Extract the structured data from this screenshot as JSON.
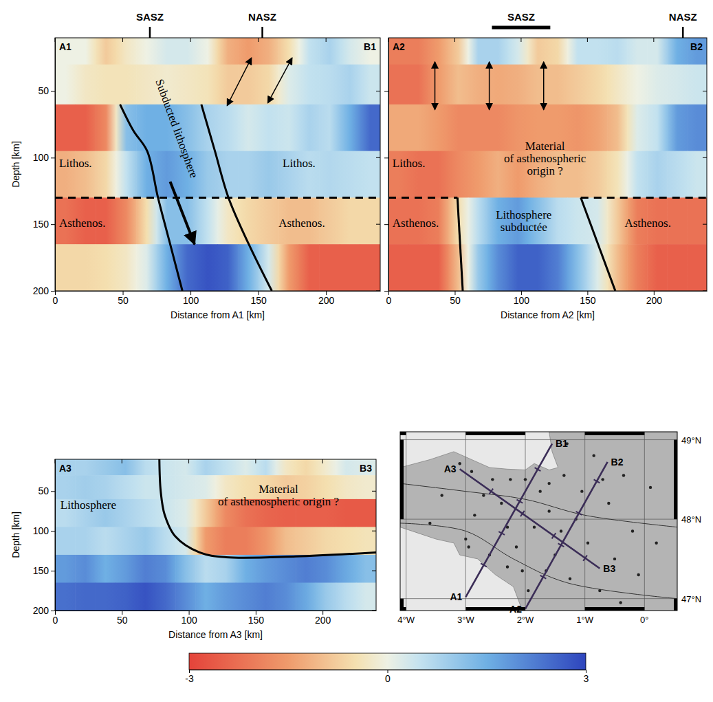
{
  "chart_data": [
    {
      "type": "heatmap",
      "start_label": "A1",
      "end_label": "B1",
      "x_label": "Distance from A1 [km]",
      "y_label": "Depth [km]",
      "xlim": [
        0,
        240
      ],
      "ylim": [
        10,
        200
      ],
      "xticks": [
        0,
        50,
        100,
        150,
        200
      ],
      "yticks": [
        50,
        100,
        150,
        200
      ],
      "distance_edges": [
        0,
        15,
        30,
        45,
        60,
        75,
        90,
        105,
        120,
        135,
        150,
        165,
        180,
        195,
        210,
        225,
        240
      ],
      "depth_edges": [
        10,
        30,
        60,
        95,
        130,
        165,
        200
      ],
      "cells": [
        [
          0,
          0,
          -0.8,
          -0.3,
          0,
          0.3,
          0.3,
          0,
          -1.2,
          -1.5,
          -1.2,
          -0.5,
          0.5,
          0.8,
          0.3,
          0
        ],
        [
          0,
          -0.3,
          -0.4,
          -0.4,
          -0.3,
          -0.2,
          -0.3,
          -0.4,
          -0.8,
          -0.8,
          -0.6,
          0.2,
          0.5,
          0.6,
          0.8,
          0.4
        ],
        [
          -2.5,
          -2.5,
          -1.8,
          1.2,
          1.5,
          1.5,
          1.2,
          0.8,
          0.6,
          0.3,
          0.5,
          0.4,
          0.8,
          0.6,
          1.5,
          2.5
        ],
        [
          -1.2,
          -1,
          -0.6,
          0.5,
          1.5,
          1.8,
          1.5,
          1,
          0.8,
          0.8,
          1,
          0.8,
          0.6,
          0.7,
          0.6,
          0.5
        ],
        [
          -2.2,
          -2.5,
          -2.5,
          -1.8,
          -0.5,
          1.2,
          1.2,
          0.5,
          -0.3,
          -0.6,
          -0.8,
          -1,
          -1,
          -0.8,
          -0.6,
          -0.6
        ],
        [
          -0.6,
          -0.6,
          -0.5,
          -0.3,
          0.2,
          1.5,
          2.5,
          2.8,
          2.6,
          1.5,
          0.3,
          -1.5,
          -2.5,
          -2.5,
          -2.5,
          -2.5
        ]
      ],
      "zones": [
        {
          "label": "SASZ",
          "distance": 70
        },
        {
          "label": "NASZ",
          "distance": 153
        }
      ],
      "boundaries": [
        {
          "points": [
            [
              48,
              60
            ],
            [
              58,
              80
            ],
            [
              68,
              95
            ],
            [
              76,
              130
            ],
            [
              85,
              165
            ],
            [
              94,
              200
            ]
          ],
          "line_style": "solid"
        },
        {
          "points": [
            [
              108,
              60
            ],
            [
              118,
              95
            ],
            [
              128,
              130
            ],
            [
              143,
              165
            ],
            [
              160,
              200
            ]
          ],
          "line_style": "solid"
        },
        {
          "points": [
            [
              0,
              130
            ],
            [
              240,
              130
            ]
          ],
          "line_style": "dashed"
        }
      ],
      "arrows": [
        {
          "points": [
            [
              85,
              118
            ],
            [
              103,
              165
            ]
          ],
          "marker": "single"
        },
        {
          "points": [
            [
              127,
              61
            ],
            [
              145,
              25
            ]
          ],
          "marker": "double"
        },
        {
          "points": [
            [
              157,
              59
            ],
            [
              175,
              25
            ]
          ],
          "marker": "double"
        }
      ],
      "annotations": [
        {
          "lines": [
            "Lithos."
          ]
        },
        {
          "lines": [
            "Lithos."
          ]
        },
        {
          "lines": [
            "Asthenos."
          ]
        },
        {
          "lines": [
            "Asthenos."
          ]
        },
        {
          "lines": [
            "Subducted lithosphere"
          ]
        }
      ]
    },
    {
      "type": "heatmap",
      "start_label": "A2",
      "end_label": "B2",
      "x_label": "Distance from A2 [km]",
      "xlim": [
        0,
        240
      ],
      "ylim": [
        10,
        200
      ],
      "xticks": [
        0,
        50,
        100,
        150,
        200
      ],
      "yticks": [
        50,
        100,
        150,
        200
      ],
      "tick_labels": "x",
      "distance_edges": [
        0,
        15,
        30,
        45,
        60,
        75,
        90,
        105,
        120,
        135,
        150,
        165,
        180,
        195,
        210,
        225,
        240
      ],
      "depth_edges": [
        10,
        30,
        60,
        95,
        130,
        165,
        200
      ],
      "cells": [
        [
          -2,
          -2,
          -1.5,
          -0.8,
          0.8,
          0.8,
          0.3,
          -0.8,
          -0.6,
          0.5,
          0.5,
          0.6,
          0.3,
          0.3,
          1.5,
          1.8
        ],
        [
          -2.2,
          -2.2,
          -1.5,
          -1,
          -1.2,
          -1.3,
          -1.2,
          -1,
          -1,
          -0.8,
          -0.6,
          -0.3,
          0,
          0.2,
          0.3,
          0.4
        ],
        [
          -1.3,
          -1.3,
          -1.5,
          -1.8,
          -1.8,
          -1.8,
          -1.6,
          -1.5,
          -1.5,
          -1.6,
          -1.4,
          -1,
          0.2,
          0.5,
          1.8,
          2
        ],
        [
          -2,
          -2.2,
          -2.2,
          -1.8,
          -1.5,
          -1.2,
          -1.5,
          -1.2,
          -1,
          -1,
          -0.8,
          -0.4,
          0.5,
          0.8,
          0.6,
          0.4
        ],
        [
          -2.2,
          -2.2,
          -2,
          -0.5,
          0.6,
          1.5,
          1.8,
          1.2,
          0.6,
          0.4,
          0.3,
          -0.8,
          -2,
          -2.2,
          -2.2,
          -2.2
        ],
        [
          -2.5,
          -2.5,
          -2.5,
          -1,
          1,
          2,
          2.6,
          2.6,
          2.2,
          1.2,
          0.2,
          -1,
          -2,
          -2.5,
          -2.5,
          -2.5
        ]
      ],
      "zones": [
        {
          "label": "SASZ",
          "from": 78,
          "to": 122
        },
        {
          "label": "NASZ",
          "distance": 222
        }
      ],
      "boundaries": [
        {
          "points": [
            [
              52,
              130
            ],
            [
              56,
              200
            ]
          ],
          "line_style": "solid"
        },
        {
          "points": [
            [
              145,
              130
            ],
            [
              171,
              200
            ]
          ],
          "line_style": "solid"
        },
        {
          "points": [
            [
              0,
              130
            ],
            [
              52,
              130
            ]
          ],
          "line_style": "dashed"
        },
        {
          "points": [
            [
              145,
              130
            ],
            [
              240,
              130
            ]
          ],
          "line_style": "dashed"
        }
      ],
      "arrows": [
        {
          "points": [
            [
              35,
              28
            ],
            [
              35,
              64
            ]
          ],
          "marker": "double"
        },
        {
          "points": [
            [
              76,
              28
            ],
            [
              76,
              64
            ]
          ],
          "marker": "double"
        },
        {
          "points": [
            [
              117,
              28
            ],
            [
              117,
              64
            ]
          ],
          "marker": "double"
        }
      ],
      "annotations": [
        {
          "lines": [
            "Lithos."
          ]
        },
        {
          "lines": [
            "Material",
            "of asthenospheric",
            "origin ?"
          ]
        },
        {
          "lines": [
            "Asthenos."
          ]
        },
        {
          "lines": [
            "Lithosphere",
            "subductée"
          ]
        },
        {
          "lines": [
            "Asthenos."
          ]
        }
      ]
    },
    {
      "type": "heatmap",
      "start_label": "A3",
      "end_label": "B3",
      "x_label": "Distance from A3 [km]",
      "y_label": "Depth [km]",
      "xlim": [
        0,
        240
      ],
      "ylim": [
        10,
        200
      ],
      "xticks": [
        0,
        50,
        100,
        150,
        200
      ],
      "yticks": [
        50,
        100,
        150,
        200
      ],
      "distance_edges": [
        0,
        15,
        30,
        45,
        60,
        75,
        90,
        105,
        120,
        135,
        150,
        165,
        180,
        195,
        210,
        225,
        240
      ],
      "depth_edges": [
        10,
        30,
        60,
        95,
        130,
        165,
        200
      ],
      "cells": [
        [
          0.8,
          0.8,
          1,
          1.2,
          0.6,
          0.4,
          0.3,
          0.8,
          0.5,
          0.2,
          0.6,
          -0.3,
          -0.6,
          -0.2,
          0.3,
          0.2
        ],
        [
          0.8,
          0.9,
          0.8,
          0.6,
          0.4,
          0.4,
          0.3,
          0.2,
          -0.3,
          -0.5,
          -0.6,
          -0.8,
          -0.7,
          -0.5,
          -0.3,
          -0.2
        ],
        [
          0.6,
          0.8,
          1,
          0.8,
          0.6,
          0.4,
          0.2,
          -0.8,
          -1.8,
          -2.2,
          -2.4,
          -2.5,
          -2.5,
          -2.5,
          -2.6,
          -2.6
        ],
        [
          0.8,
          0.8,
          0.6,
          0.8,
          1,
          0.6,
          0.3,
          -1.5,
          -2,
          -2,
          -1.6,
          -1,
          -0.8,
          -0.6,
          -0.5,
          -0.4
        ],
        [
          1.8,
          2,
          1.5,
          1.8,
          2.2,
          2,
          1.2,
          0.6,
          0.8,
          1.5,
          1.8,
          2,
          2.2,
          2,
          1.6,
          1.2
        ],
        [
          2.4,
          2.5,
          2.5,
          2.6,
          2.8,
          2.5,
          2,
          1.5,
          1.8,
          2,
          2.2,
          2,
          1.6,
          1,
          0.6,
          0.3
        ]
      ],
      "boundaries": [
        {
          "points": [
            [
              78,
              10
            ],
            [
              79,
              50
            ],
            [
              82,
              80
            ],
            [
              90,
              107
            ],
            [
              108,
              127
            ],
            [
              128,
              133
            ],
            [
              180,
              132
            ],
            [
              240,
              127
            ]
          ],
          "line_style": "solid"
        }
      ],
      "arrows": [],
      "annotations": [
        {
          "lines": [
            "Lithosphere"
          ]
        },
        {
          "lines": [
            "Material",
            "of asthenospheric origin ?"
          ]
        }
      ]
    },
    {
      "type": "map",
      "xlim": [
        -4.1,
        0.55
      ],
      "ylim": [
        46.85,
        49.1
      ],
      "xticks": [
        {
          "value": -4,
          "label": "4°W"
        },
        {
          "value": -3,
          "label": "3°W"
        },
        {
          "value": -2,
          "label": "2°W"
        },
        {
          "value": -1,
          "label": "1°W"
        },
        {
          "value": 0,
          "label": "0°"
        }
      ],
      "yticks": [
        {
          "value": 47,
          "label": "47°N"
        },
        {
          "value": 48,
          "label": "48°N"
        },
        {
          "value": 49,
          "label": "49°N"
        }
      ],
      "land": [
        [
          -4.1,
          48.65
        ],
        [
          -3.6,
          48.75
        ],
        [
          -3.2,
          48.85
        ],
        [
          -2.9,
          48.75
        ],
        [
          -2.6,
          48.65
        ],
        [
          -2.3,
          48.63
        ],
        [
          -2.0,
          48.62
        ],
        [
          -1.85,
          48.7
        ],
        [
          -1.6,
          48.62
        ],
        [
          -1.45,
          48.65
        ],
        [
          -1.55,
          48.85
        ],
        [
          -1.6,
          49.1
        ],
        [
          0.55,
          49.1
        ],
        [
          0.55,
          46.85
        ],
        [
          -2.05,
          46.85
        ],
        [
          -2.2,
          47.15
        ],
        [
          -2.5,
          47.3
        ],
        [
          -2.8,
          47.5
        ],
        [
          -3.1,
          47.55
        ],
        [
          -3.2,
          47.7
        ],
        [
          -3.5,
          47.75
        ],
        [
          -3.9,
          47.85
        ],
        [
          -4.1,
          47.9
        ]
      ],
      "faults": [
        [
          [
            -4.1,
            48.45
          ],
          [
            -3.0,
            48.35
          ],
          [
            -2.0,
            48.25
          ],
          [
            -1.0,
            48.05
          ],
          [
            0.55,
            47.9
          ]
        ],
        [
          [
            -4.1,
            47.95
          ],
          [
            -3.0,
            47.85
          ],
          [
            -2.2,
            47.5
          ],
          [
            -1.3,
            47.2
          ],
          [
            0.55,
            47.0
          ]
        ]
      ],
      "stations": [
        [
          -2.95,
          47.65
        ],
        [
          -3.0,
          47.75
        ],
        [
          -2.85,
          48.05
        ],
        [
          -2.7,
          48.3
        ],
        [
          -2.55,
          48.5
        ],
        [
          -2.4,
          48.2
        ],
        [
          -2.3,
          47.9
        ],
        [
          -2.15,
          47.65
        ],
        [
          -2.05,
          47.35
        ],
        [
          -1.95,
          47.1
        ],
        [
          -1.85,
          47.9
        ],
        [
          -1.75,
          48.35
        ],
        [
          -1.6,
          48.45
        ],
        [
          -1.6,
          48.1
        ],
        [
          -1.5,
          47.55
        ],
        [
          -1.4,
          47.85
        ],
        [
          -1.35,
          48.55
        ],
        [
          -1.25,
          47.25
        ],
        [
          -1.15,
          48.0
        ],
        [
          -1.05,
          48.35
        ],
        [
          -0.95,
          47.7
        ],
        [
          -0.85,
          48.8
        ],
        [
          -0.75,
          47.1
        ],
        [
          -0.6,
          48.2
        ],
        [
          -0.5,
          47.5
        ],
        [
          -0.35,
          48.55
        ],
        [
          -0.2,
          47.85
        ],
        [
          -0.1,
          47.3
        ],
        [
          0.1,
          48.4
        ],
        [
          0.2,
          47.7
        ],
        [
          -2.6,
          47.55
        ],
        [
          -2.25,
          48.5
        ],
        [
          -3.4,
          48.3
        ],
        [
          -3.6,
          47.95
        ],
        [
          -2.9,
          48.6
        ],
        [
          -1.3,
          48.95
        ],
        [
          -0.4,
          46.95
        ],
        [
          -2.3,
          47.4
        ],
        [
          -1.65,
          47.35
        ],
        [
          -0.7,
          48.5
        ],
        [
          -3.1,
          48.7
        ],
        [
          -2.0,
          48.5
        ]
      ],
      "profiles": [
        {
          "labels": [
            "A1",
            "B1"
          ],
          "points": [
            [
              -3.0,
              47.02
            ],
            [
              -1.55,
              48.95
            ]
          ]
        },
        {
          "labels": [
            "A2",
            "B2"
          ],
          "points": [
            [
              -2.0,
              46.87
            ],
            [
              -0.62,
              48.72
            ]
          ]
        },
        {
          "labels": [
            "A3",
            "B3"
          ],
          "points": [
            [
              -3.1,
              48.63
            ],
            [
              -0.75,
              47.38
            ]
          ]
        }
      ],
      "profile_ticks": [
        50,
        100,
        150,
        200
      ]
    }
  ],
  "colorbar": {
    "range": [
      -3,
      3
    ],
    "ticks": [
      -3,
      0,
      3
    ]
  }
}
